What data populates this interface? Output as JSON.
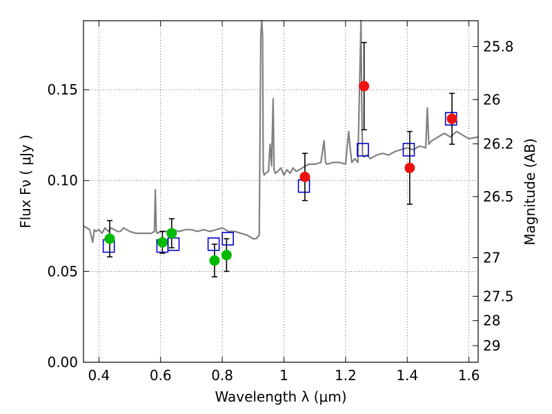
{
  "chart_data": {
    "type": "scatter",
    "xlabel": "Wavelength  λ (μm)",
    "ylabel": "Flux  Fν  ( μJy )",
    "ylabel_right": "Magnitude (AB)",
    "xlim": [
      0.35,
      1.63
    ],
    "ylim": [
      0,
      0.188
    ],
    "x_ticks": [
      0.4,
      0.6,
      0.8,
      1.0,
      1.2,
      1.4,
      1.6
    ],
    "x_tick_labels": [
      "0.4",
      "0.6",
      "0.8",
      "1",
      "1.2",
      "1.4",
      "1.6"
    ],
    "y_ticks": [
      0.0,
      0.05,
      0.1,
      0.15
    ],
    "y_tick_labels": [
      "0.00",
      "0.05",
      "0.10",
      "0.15"
    ],
    "mag_ticks": [
      25.8,
      26,
      26.2,
      26.5,
      27,
      27.5,
      28,
      29
    ],
    "mag_tick_labels": [
      "25.8",
      "26",
      "26.2",
      "26.5",
      "27",
      "27.5",
      "28",
      "29"
    ],
    "grid": true,
    "colors": {
      "model": "#808080",
      "green": "#00bb00",
      "red": "#ee1111",
      "square": "#0000cc",
      "error": "#000000"
    },
    "model_spectrum": {
      "x": [
        0.35,
        0.36,
        0.37,
        0.38,
        0.385,
        0.39,
        0.4,
        0.41,
        0.42,
        0.43,
        0.44,
        0.45,
        0.46,
        0.47,
        0.48,
        0.49,
        0.5,
        0.52,
        0.54,
        0.56,
        0.57,
        0.58,
        0.583,
        0.586,
        0.59,
        0.6,
        0.62,
        0.64,
        0.66,
        0.68,
        0.7,
        0.72,
        0.74,
        0.76,
        0.78,
        0.8,
        0.82,
        0.84,
        0.86,
        0.88,
        0.9,
        0.91,
        0.92,
        0.925,
        0.928,
        0.931,
        0.933,
        0.936,
        0.94,
        0.95,
        0.955,
        0.96,
        0.965,
        0.968,
        0.972,
        0.98,
        0.99,
        1.0,
        1.01,
        1.02,
        1.03,
        1.04,
        1.05,
        1.06,
        1.08,
        1.1,
        1.12,
        1.13,
        1.135,
        1.14,
        1.16,
        1.18,
        1.2,
        1.21,
        1.215,
        1.22,
        1.225,
        1.23,
        1.24,
        1.245,
        1.25,
        1.252,
        1.255,
        1.26,
        1.27,
        1.28,
        1.3,
        1.32,
        1.34,
        1.36,
        1.38,
        1.4,
        1.42,
        1.44,
        1.46,
        1.465,
        1.47,
        1.48,
        1.5,
        1.52,
        1.54,
        1.56,
        1.58,
        1.6,
        1.63
      ],
      "y": [
        0.075,
        0.074,
        0.073,
        0.066,
        0.073,
        0.072,
        0.073,
        0.071,
        0.074,
        0.072,
        0.074,
        0.073,
        0.072,
        0.072,
        0.074,
        0.073,
        0.072,
        0.071,
        0.071,
        0.071,
        0.071,
        0.072,
        0.095,
        0.072,
        0.071,
        0.072,
        0.072,
        0.073,
        0.072,
        0.073,
        0.073,
        0.072,
        0.073,
        0.072,
        0.073,
        0.074,
        0.072,
        0.072,
        0.071,
        0.07,
        0.068,
        0.068,
        0.07,
        0.18,
        0.188,
        0.18,
        0.105,
        0.103,
        0.104,
        0.105,
        0.12,
        0.108,
        0.145,
        0.106,
        0.104,
        0.105,
        0.107,
        0.103,
        0.106,
        0.104,
        0.107,
        0.105,
        0.106,
        0.107,
        0.109,
        0.109,
        0.11,
        0.122,
        0.11,
        0.109,
        0.11,
        0.11,
        0.109,
        0.127,
        0.118,
        0.11,
        0.111,
        0.112,
        0.11,
        0.15,
        0.188,
        0.15,
        0.114,
        0.113,
        0.114,
        0.112,
        0.114,
        0.115,
        0.114,
        0.116,
        0.117,
        0.118,
        0.117,
        0.119,
        0.118,
        0.14,
        0.12,
        0.122,
        0.124,
        0.126,
        0.124,
        0.127,
        0.125,
        0.123,
        0.124
      ]
    },
    "series": [
      {
        "marker": "circle-green",
        "points": [
          {
            "x": 0.435,
            "y": 0.068,
            "err": 0.01
          },
          {
            "x": 0.606,
            "y": 0.066,
            "err": 0.006
          },
          {
            "x": 0.636,
            "y": 0.071,
            "err": 0.008
          },
          {
            "x": 0.775,
            "y": 0.056,
            "err": 0.009
          },
          {
            "x": 0.814,
            "y": 0.059,
            "err": 0.009
          }
        ]
      },
      {
        "marker": "circle-red",
        "points": [
          {
            "x": 1.068,
            "y": 0.102,
            "err": 0.013
          },
          {
            "x": 1.26,
            "y": 0.152,
            "err": 0.024
          },
          {
            "x": 1.408,
            "y": 0.107,
            "err": 0.02
          },
          {
            "x": 1.545,
            "y": 0.134,
            "err": 0.014
          }
        ]
      },
      {
        "marker": "square-blue",
        "points": [
          {
            "x": 0.432,
            "y": 0.064
          },
          {
            "x": 0.606,
            "y": 0.064
          },
          {
            "x": 0.642,
            "y": 0.065
          },
          {
            "x": 0.772,
            "y": 0.065
          },
          {
            "x": 0.818,
            "y": 0.068
          },
          {
            "x": 1.065,
            "y": 0.097
          },
          {
            "x": 1.256,
            "y": 0.117
          },
          {
            "x": 1.405,
            "y": 0.117
          },
          {
            "x": 1.542,
            "y": 0.134
          }
        ]
      }
    ]
  }
}
